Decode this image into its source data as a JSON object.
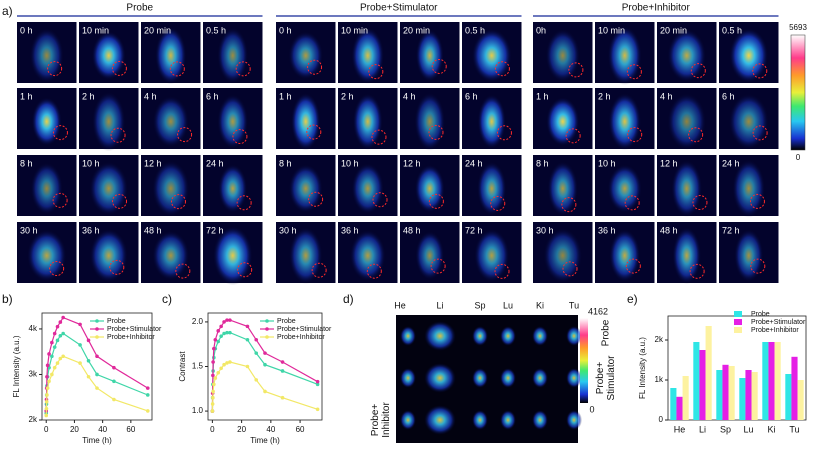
{
  "panel_a": {
    "label": "a)",
    "groups": [
      {
        "title": "Probe",
        "times": [
          "0 h",
          "10 min",
          "20 min",
          "0.5 h",
          "1 h",
          "2 h",
          "4 h",
          "6 h",
          "8 h",
          "10 h",
          "12 h",
          "24 h",
          "30 h",
          "36 h",
          "48 h",
          "72 h"
        ]
      },
      {
        "title": "Probe+Stimulator",
        "times": [
          "0 h",
          "10 min",
          "20 min",
          "0.5 h",
          "1 h",
          "2 h",
          "4 h",
          "6 h",
          "8 h",
          "10 h",
          "12 h",
          "24 h",
          "30 h",
          "36 h",
          "48 h",
          "72 h"
        ]
      },
      {
        "title": "Probe+Inhibitor",
        "times": [
          "0h",
          "10 min",
          "20 min",
          "0.5 h",
          "1 h",
          "2 h",
          "4 h",
          "6 h",
          "8 h",
          "10 h",
          "12 h",
          "24 h",
          "30 h",
          "36 h",
          "48 h",
          "72 h"
        ]
      }
    ],
    "colorbar_max": 5693,
    "colorbar_min": 0
  },
  "panel_d": {
    "label": "d)",
    "organs": [
      "He",
      "Li",
      "Sp",
      "Lu",
      "Ki",
      "Tu"
    ],
    "rows": [
      [
        "Probe"
      ],
      [
        "Probe+",
        "Stimulator"
      ],
      [
        "Probe+",
        "Inhibitor"
      ]
    ],
    "colorbar_max": 4162,
    "colorbar_min": 0
  },
  "chart_data": [
    {
      "type": "line",
      "label": "b)",
      "xlabel": "Time (h)",
      "ylabel": "FL Intensity (a.u.)",
      "x": [
        0,
        0.17,
        0.33,
        0.5,
        1,
        2,
        4,
        6,
        8,
        10,
        12,
        24,
        30,
        36,
        48,
        72
      ],
      "xlim": [
        -3,
        75
      ],
      "xticks": [
        0,
        20,
        40,
        60
      ],
      "ylim": [
        2000,
        4350
      ],
      "yticks": [
        {
          "value": 2000,
          "label": "2k"
        },
        {
          "value": 3000,
          "label": "3k"
        },
        {
          "value": 4000,
          "label": "4k"
        }
      ],
      "series": [
        {
          "name": "Probe",
          "color": "#3fd6a8",
          "values": [
            2150,
            2350,
            2550,
            2750,
            2950,
            3150,
            3400,
            3600,
            3750,
            3850,
            3900,
            3650,
            3300,
            3000,
            2850,
            2550
          ]
        },
        {
          "name": "Probe+Stimulator",
          "color": "#e0299a",
          "values": [
            2200,
            2450,
            2700,
            2950,
            3200,
            3450,
            3700,
            3900,
            4050,
            4150,
            4250,
            4100,
            3750,
            3400,
            3150,
            2700
          ]
        },
        {
          "name": "Probe+Inhibitor",
          "color": "#f2e866",
          "values": [
            2100,
            2250,
            2400,
            2550,
            2700,
            2850,
            3000,
            3150,
            3250,
            3350,
            3400,
            3250,
            2950,
            2700,
            2450,
            2200
          ]
        }
      ]
    },
    {
      "type": "line",
      "label": "c)",
      "xlabel": "Time (h)",
      "ylabel": "Contrast",
      "x": [
        0,
        0.17,
        0.33,
        0.5,
        1,
        2,
        4,
        6,
        8,
        10,
        12,
        24,
        30,
        36,
        48,
        72
      ],
      "xlim": [
        -3,
        75
      ],
      "xticks": [
        0,
        20,
        40,
        60
      ],
      "ylim": [
        0.9,
        2.1
      ],
      "yticks": [
        {
          "value": 1,
          "label": "1.0"
        },
        1.5,
        {
          "value": 2,
          "label": "2.0"
        }
      ],
      "series": [
        {
          "name": "Probe",
          "color": "#3fd6a8",
          "values": [
            1.0,
            1.15,
            1.3,
            1.45,
            1.6,
            1.7,
            1.78,
            1.84,
            1.87,
            1.88,
            1.88,
            1.8,
            1.65,
            1.52,
            1.45,
            1.3
          ]
        },
        {
          "name": "Probe+Stimulator",
          "color": "#e0299a",
          "values": [
            1.0,
            1.2,
            1.4,
            1.55,
            1.7,
            1.8,
            1.9,
            1.95,
            2.0,
            2.02,
            2.02,
            1.95,
            1.8,
            1.65,
            1.55,
            1.33
          ]
        },
        {
          "name": "Probe+Inhibitor",
          "color": "#f2e866",
          "values": [
            1.0,
            1.08,
            1.15,
            1.22,
            1.3,
            1.37,
            1.43,
            1.48,
            1.52,
            1.54,
            1.55,
            1.5,
            1.35,
            1.22,
            1.15,
            1.02
          ]
        }
      ]
    },
    {
      "type": "bar",
      "label": "e)",
      "ylabel": "FL Intensity (a.u.)",
      "categories": [
        "He",
        "Li",
        "Sp",
        "Lu",
        "Ki",
        "Tu"
      ],
      "ylim": [
        0,
        2600
      ],
      "yticks": [
        0,
        {
          "value": 1000,
          "label": "1k"
        },
        {
          "value": 2000,
          "label": "2k"
        }
      ],
      "series": [
        {
          "name": "Probe",
          "color": "#2fe6e6",
          "values": [
            800,
            1950,
            1250,
            1050,
            1950,
            1150
          ]
        },
        {
          "name": "Probe+Stimulator",
          "color": "#e51fe5",
          "values": [
            580,
            1750,
            1380,
            1250,
            1950,
            1580
          ]
        },
        {
          "name": "Probe+Inhibitor",
          "color": "#fdf2a0",
          "values": [
            1100,
            2350,
            1350,
            1200,
            1950,
            1000
          ]
        }
      ]
    }
  ]
}
